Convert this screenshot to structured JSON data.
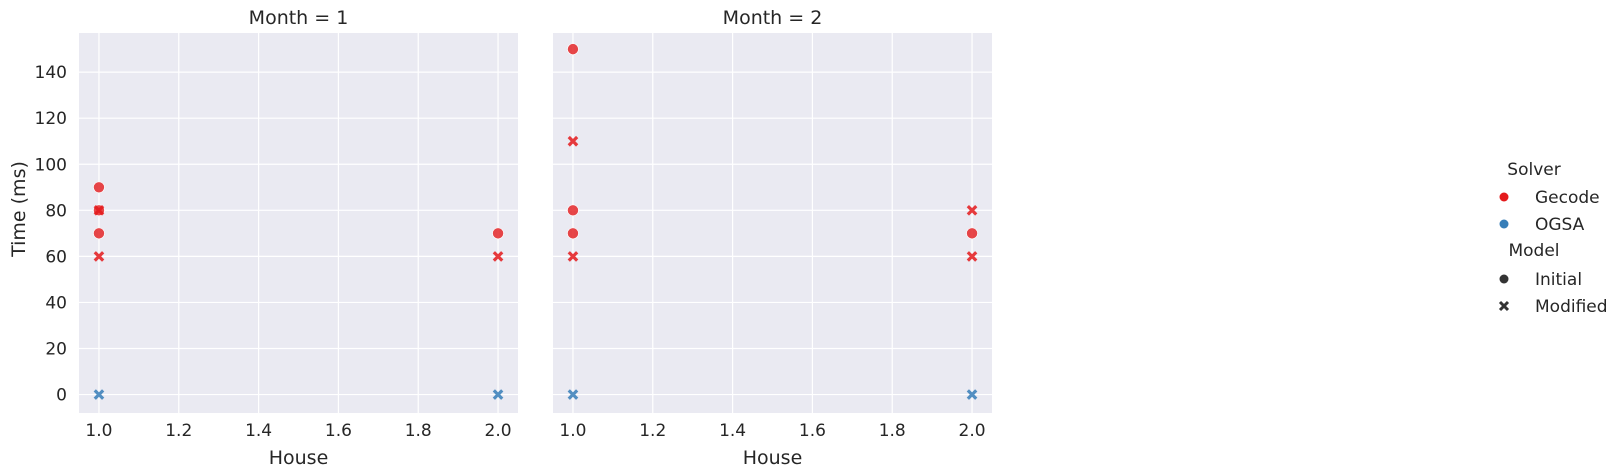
{
  "chart_data": {
    "type": "scatter",
    "ylabel": "Time (ms)",
    "xlim": [
      0.95,
      2.05
    ],
    "ylim": [
      -8,
      157
    ],
    "xticks": [
      "1.0",
      "1.2",
      "1.4",
      "1.6",
      "1.8",
      "2.0"
    ],
    "xtick_values": [
      1.0,
      1.2,
      1.4,
      1.6,
      1.8,
      2.0
    ],
    "yticks": [
      "0",
      "20",
      "40",
      "60",
      "80",
      "100",
      "120",
      "140"
    ],
    "ytick_values": [
      0,
      20,
      40,
      60,
      80,
      100,
      120,
      140
    ],
    "grid": true,
    "colors": {
      "Gecode": "#e41a1c",
      "OGSA": "#377eb8"
    },
    "legend": {
      "placement": "right",
      "hue_title": "Solver",
      "hue_entries": [
        "Gecode",
        "OGSA"
      ],
      "style_title": "Model",
      "style_entries": [
        "Initial",
        "Modified"
      ]
    },
    "facets": [
      {
        "title": "Month = 1",
        "xlabel": "House",
        "points": [
          {
            "x": 1.0,
            "y": 90,
            "solver": "Gecode",
            "model": "Initial"
          },
          {
            "x": 1.0,
            "y": 80,
            "solver": "Gecode",
            "model": "Initial"
          },
          {
            "x": 1.0,
            "y": 70,
            "solver": "Gecode",
            "model": "Initial"
          },
          {
            "x": 1.0,
            "y": 80,
            "solver": "Gecode",
            "model": "Modified"
          },
          {
            "x": 1.0,
            "y": 60,
            "solver": "Gecode",
            "model": "Modified"
          },
          {
            "x": 1.0,
            "y": 0,
            "solver": "OGSA",
            "model": "Modified"
          },
          {
            "x": 2.0,
            "y": 70,
            "solver": "Gecode",
            "model": "Initial"
          },
          {
            "x": 2.0,
            "y": 60,
            "solver": "Gecode",
            "model": "Modified"
          },
          {
            "x": 2.0,
            "y": 0,
            "solver": "OGSA",
            "model": "Modified"
          }
        ]
      },
      {
        "title": "Month = 2",
        "xlabel": "House",
        "points": [
          {
            "x": 1.0,
            "y": 150,
            "solver": "Gecode",
            "model": "Initial"
          },
          {
            "x": 1.0,
            "y": 110,
            "solver": "Gecode",
            "model": "Modified"
          },
          {
            "x": 1.0,
            "y": 80,
            "solver": "Gecode",
            "model": "Initial"
          },
          {
            "x": 1.0,
            "y": 70,
            "solver": "Gecode",
            "model": "Initial"
          },
          {
            "x": 1.0,
            "y": 60,
            "solver": "Gecode",
            "model": "Modified"
          },
          {
            "x": 1.0,
            "y": 0,
            "solver": "OGSA",
            "model": "Modified"
          },
          {
            "x": 2.0,
            "y": 80,
            "solver": "Gecode",
            "model": "Modified"
          },
          {
            "x": 2.0,
            "y": 70,
            "solver": "Gecode",
            "model": "Initial"
          },
          {
            "x": 2.0,
            "y": 60,
            "solver": "Gecode",
            "model": "Modified"
          },
          {
            "x": 2.0,
            "y": 0,
            "solver": "OGSA",
            "model": "Modified"
          }
        ]
      }
    ]
  }
}
